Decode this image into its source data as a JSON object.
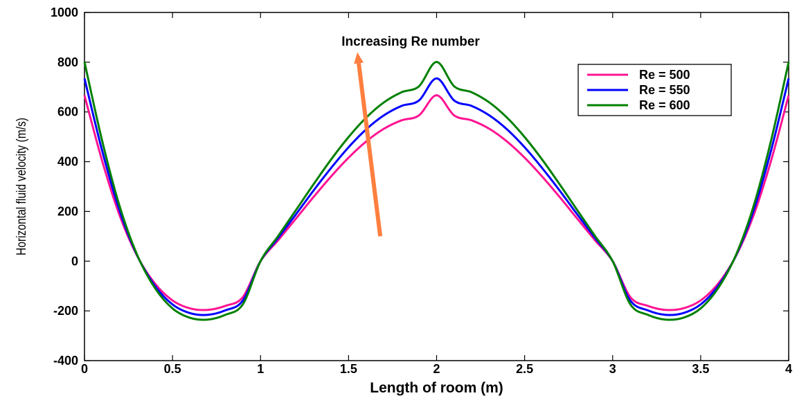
{
  "chart_data": {
    "type": "line",
    "title": "",
    "xlabel": "Length of room (m)",
    "ylabel": "Horizontal fluid velocity (m/s)",
    "xlim": [
      0,
      4
    ],
    "ylim": [
      -400,
      1000
    ],
    "xticks": [
      "0",
      "0.5",
      "1",
      "1.5",
      "2",
      "2.5",
      "3",
      "3.5",
      "4"
    ],
    "yticks": [
      "-400",
      "-200",
      "0",
      "200",
      "400",
      "600",
      "800",
      "1000"
    ],
    "grid": false,
    "legend_position": "top-right",
    "x": [
      0,
      0.1,
      0.2,
      0.3,
      0.4,
      0.5,
      0.6,
      0.7,
      0.8,
      0.9,
      1.0,
      1.1,
      1.2,
      1.3,
      1.4,
      1.5,
      1.6,
      1.7,
      1.8,
      1.9,
      2.0,
      2.1,
      2.2,
      2.3,
      2.4,
      2.5,
      2.6,
      2.7,
      2.8,
      2.9,
      3.0,
      3.1,
      3.2,
      3.3,
      3.4,
      3.5,
      3.6,
      3.7,
      3.8,
      3.9,
      4.0
    ],
    "series": [
      {
        "name": "Re = 500",
        "color": "#ff1493",
        "values": [
          667,
          404,
          183,
          20,
          -90,
          -158,
          -190,
          -196,
          -180,
          -144,
          0,
          84,
          170,
          257,
          340,
          416,
          481,
          532,
          566,
          586,
          667,
          586,
          566,
          532,
          481,
          416,
          340,
          257,
          170,
          84,
          0,
          -144,
          -180,
          -196,
          -190,
          -158,
          -90,
          20,
          183,
          404,
          667
        ]
      },
      {
        "name": "Re = 550",
        "color": "#0000ff",
        "values": [
          735,
          445,
          202,
          22,
          -99,
          -174,
          -209,
          -216,
          -198,
          -158,
          0,
          93,
          187,
          283,
          374,
          458,
          530,
          586,
          624,
          646,
          735,
          646,
          624,
          586,
          530,
          458,
          374,
          283,
          187,
          93,
          0,
          -158,
          -198,
          -216,
          -209,
          -174,
          -99,
          22,
          202,
          445,
          735
        ]
      },
      {
        "name": "Re = 600",
        "color": "#008000",
        "values": [
          801,
          485,
          220,
          24,
          -108,
          -190,
          -228,
          -235,
          -216,
          -173,
          0,
          101,
          204,
          308,
          408,
          499,
          577,
          638,
          679,
          703,
          801,
          703,
          679,
          638,
          577,
          499,
          408,
          308,
          204,
          101,
          0,
          -173,
          -216,
          -235,
          -228,
          -190,
          -108,
          24,
          220,
          485,
          801
        ]
      }
    ],
    "annotations": [
      {
        "text": "Increasing Re number",
        "arrow_color": "#ff7f3f",
        "arrow_from": [
          1.68,
          100
        ],
        "arrow_to": [
          1.55,
          840
        ]
      }
    ]
  }
}
